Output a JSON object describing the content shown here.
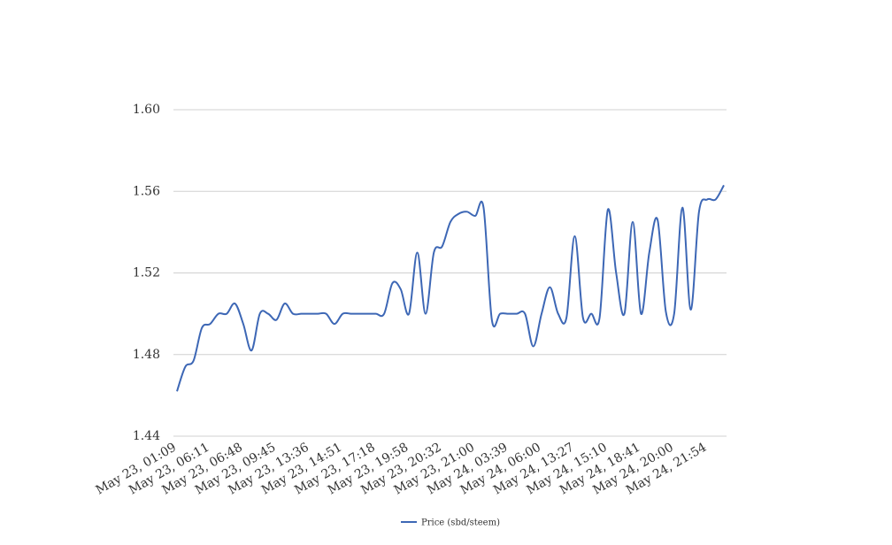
{
  "chart_data": {
    "type": "line",
    "categories": [
      "May 23, 01:09",
      null,
      null,
      null,
      "May 23, 06:11",
      null,
      null,
      null,
      "May 23, 06:48",
      null,
      null,
      null,
      "May 23, 09:45",
      null,
      null,
      null,
      "May 23, 13:36",
      null,
      null,
      null,
      "May 23, 14:51",
      null,
      null,
      null,
      "May 23, 17:18",
      null,
      null,
      null,
      "May 23, 19:58",
      null,
      null,
      null,
      "May 23, 20:32",
      null,
      null,
      null,
      "May 23, 21:00",
      null,
      null,
      null,
      "May 24, 03:39",
      null,
      null,
      null,
      "May 24, 06:00",
      null,
      null,
      null,
      "May 24, 13:27",
      null,
      null,
      null,
      "May 24, 15:10",
      null,
      null,
      null,
      "May 24, 18:41",
      null,
      null,
      null,
      "May 24, 20:00",
      null,
      null,
      null,
      "May 24, 21:54",
      null,
      null
    ],
    "series": [
      {
        "name": "Price (sbd/steem)",
        "color": "#3d67b5",
        "values": [
          1.462,
          1.474,
          1.477,
          1.493,
          1.495,
          1.5,
          1.5,
          1.505,
          1.495,
          1.482,
          1.5,
          1.5,
          1.497,
          1.505,
          1.5,
          1.5,
          1.5,
          1.5,
          1.5,
          1.495,
          1.5,
          1.5,
          1.5,
          1.5,
          1.5,
          1.5,
          1.515,
          1.512,
          1.5,
          1.53,
          1.5,
          1.53,
          1.533,
          1.545,
          1.549,
          1.55,
          1.548,
          1.552,
          1.497,
          1.5,
          1.5,
          1.5,
          1.5,
          1.484,
          1.5,
          1.513,
          1.5,
          1.498,
          1.538,
          1.498,
          1.5,
          1.498,
          1.551,
          1.52,
          1.5,
          1.545,
          1.5,
          1.53,
          1.546,
          1.501,
          1.5,
          1.552,
          1.502,
          1.55,
          1.556,
          1.556,
          1.563
        ]
      }
    ],
    "ylim": [
      1.44,
      1.6
    ],
    "yticks": [
      {
        "value": 1.44,
        "label": "1.44"
      },
      {
        "value": 1.48,
        "label": "1.48"
      },
      {
        "value": 1.52,
        "label": "1.52"
      },
      {
        "value": 1.56,
        "label": "1.56"
      },
      {
        "value": 1.6,
        "label": "1.60"
      }
    ],
    "grid": true,
    "legend": "bottom"
  }
}
